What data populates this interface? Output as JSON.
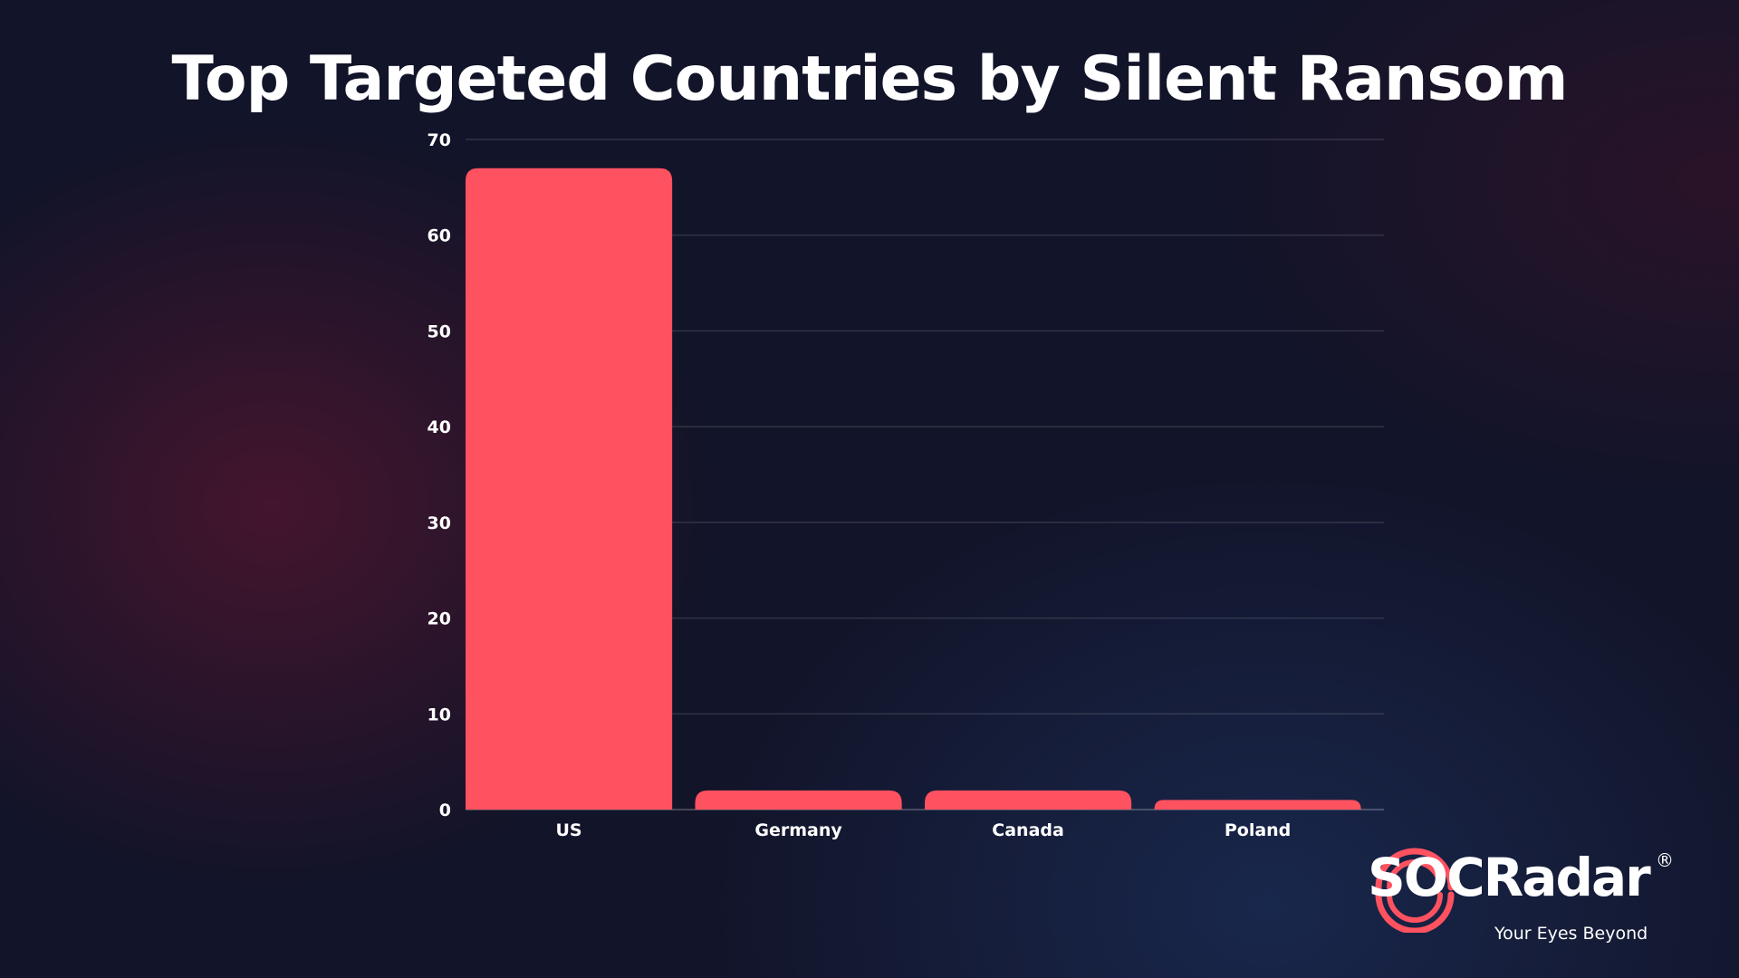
{
  "chart_data": {
    "type": "bar",
    "title": "Top Targeted Countries by Silent Ransom",
    "xlabel": "",
    "ylabel": "",
    "categories": [
      "US",
      "Germany",
      "Canada",
      "Poland"
    ],
    "values": [
      67,
      2,
      2,
      1
    ],
    "ylim": [
      0,
      70
    ],
    "yticks": [
      "0",
      "10",
      "20",
      "30",
      "40",
      "50",
      "60",
      "70"
    ],
    "grid": true,
    "bar_color": "#fe5260"
  },
  "logo": {
    "wordmark": "SOCRadar",
    "registered": "®",
    "tagline": "Your Eyes Beyond",
    "icon": "radar-rings-icon",
    "accent_color": "#fe5260"
  }
}
